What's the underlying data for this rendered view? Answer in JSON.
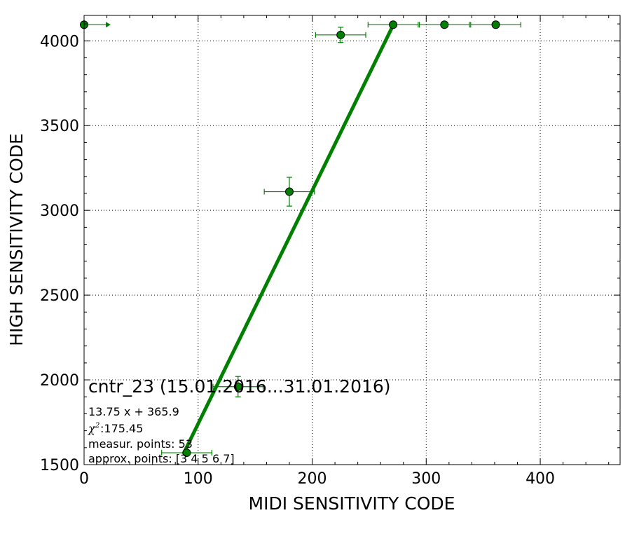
{
  "chart_data": {
    "type": "scatter",
    "title": "",
    "xlabel": "MIDI SENSITIVITY CODE",
    "ylabel": "HIGH SENSITIVITY CODE",
    "xlim": [
      0,
      470
    ],
    "ylim": [
      1500,
      4150
    ],
    "x_ticks": [
      0,
      100,
      200,
      300,
      400
    ],
    "y_ticks": [
      1500,
      2000,
      2500,
      3000,
      3500,
      4000
    ],
    "grid": true,
    "colors": {
      "series": "#008000",
      "marker_edge": "#000000"
    },
    "points": [
      {
        "x": 90,
        "y": 1570,
        "xerr": 22,
        "yerr": 0
      },
      {
        "x": 135,
        "y": 1960,
        "xerr": 22,
        "yerr": 60
      },
      {
        "x": 180,
        "y": 3110,
        "xerr": 22,
        "yerr": 85
      },
      {
        "x": 225,
        "y": 4035,
        "xerr": 22,
        "yerr": 45
      },
      {
        "x": 271,
        "y": 4095,
        "xerr": 22,
        "yerr": 0
      },
      {
        "x": 316,
        "y": 4095,
        "xerr": 22,
        "yerr": 0
      },
      {
        "x": 361,
        "y": 4095,
        "xerr": 22,
        "yerr": 0
      }
    ],
    "lower_limit_points": [
      {
        "x": 0,
        "y": 4095
      }
    ],
    "fit": {
      "slope": 13.75,
      "intercept": 365.9,
      "x_range": [
        87,
        271
      ]
    },
    "annotation": {
      "title": "cntr_23 (15.01.2016...31.01.2016)",
      "equation": "13.75 x + 365.9",
      "chi_symbol": "χ",
      "chi_exponent": "2",
      "chi_value": " :175.45",
      "measured": "measur. points: 53",
      "approx": "approx. points: [3 4 5 6 7]"
    }
  }
}
